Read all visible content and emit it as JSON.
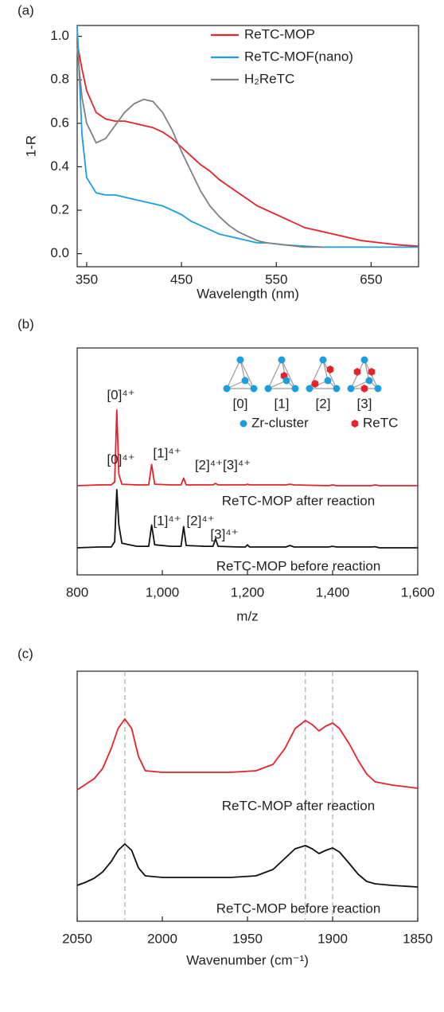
{
  "chart_data": [
    {
      "type": "line",
      "panel_label": "(a)",
      "xlabel": "Wavelength (nm)",
      "ylabel": "1-R",
      "xlim": [
        340,
        700
      ],
      "ylim": [
        -0.06,
        1.05
      ],
      "xticks": [
        350,
        450,
        550,
        650
      ],
      "yticks": [
        {
          "value": 0,
          "label": "0.0"
        },
        {
          "value": 0.2,
          "label": "0.2"
        },
        {
          "value": 0.4,
          "label": "0.4"
        },
        {
          "value": 0.6,
          "label": "0.6"
        },
        {
          "value": 0.8,
          "label": "0.8"
        },
        {
          "value": 1,
          "label": "1.0"
        }
      ],
      "legend": "upper right",
      "x": [
        340,
        345,
        350,
        360,
        370,
        380,
        390,
        400,
        410,
        420,
        430,
        440,
        450,
        460,
        470,
        480,
        490,
        500,
        510,
        520,
        530,
        540,
        560,
        580,
        600,
        620,
        640,
        660,
        680,
        700
      ],
      "series": [
        {
          "name": "ReTC-MOP",
          "color": "#e8212b",
          "values": [
            0.97,
            0.85,
            0.75,
            0.65,
            0.62,
            0.61,
            0.61,
            0.6,
            0.59,
            0.58,
            0.56,
            0.53,
            0.49,
            0.45,
            0.41,
            0.38,
            0.34,
            0.31,
            0.28,
            0.25,
            0.22,
            0.2,
            0.16,
            0.12,
            0.1,
            0.08,
            0.06,
            0.05,
            0.04,
            0.035
          ]
        },
        {
          "name": "ReTC-MOF(nano)",
          "color": "#1a9ee0",
          "values": [
            1.05,
            0.55,
            0.35,
            0.28,
            0.27,
            0.27,
            0.26,
            0.25,
            0.24,
            0.23,
            0.22,
            0.2,
            0.18,
            0.15,
            0.13,
            0.11,
            0.09,
            0.08,
            0.07,
            0.06,
            0.05,
            0.05,
            0.04,
            0.035,
            0.03,
            0.03,
            0.03,
            0.03,
            0.03,
            0.03
          ]
        },
        {
          "name": "H₂ReTC",
          "color": "#808080",
          "values": [
            0.95,
            0.72,
            0.6,
            0.51,
            0.53,
            0.59,
            0.65,
            0.69,
            0.71,
            0.7,
            0.65,
            0.57,
            0.47,
            0.38,
            0.29,
            0.22,
            0.17,
            0.13,
            0.1,
            0.08,
            0.06,
            0.05,
            0.04,
            0.03,
            0.03,
            null,
            null,
            null,
            null,
            null
          ]
        }
      ]
    },
    {
      "type": "line",
      "panel_label": "(b)",
      "xlabel": "m/z",
      "xlim": [
        800,
        1600
      ],
      "xticks": [
        800,
        {
          "value": 1000,
          "label": "1,000"
        },
        {
          "value": 1200,
          "label": "1,200"
        },
        {
          "value": 1400,
          "label": "1,400"
        },
        {
          "value": 1600,
          "label": "1,600"
        }
      ],
      "x": [
        800,
        850,
        880,
        888,
        893,
        898,
        905,
        940,
        968,
        975,
        982,
        1020,
        1044,
        1050,
        1056,
        1100,
        1119,
        1125,
        1131,
        1180,
        1195,
        1200,
        1205,
        1290,
        1300,
        1310,
        1390,
        1400,
        1410,
        1490,
        1500,
        1510,
        1600
      ],
      "series": [
        {
          "name": "ReTC-MOP after reaction",
          "color": "#e8212b",
          "values": [
            0,
            0.01,
            0.01,
            0.05,
            1.0,
            0.15,
            0.02,
            0.01,
            0.01,
            0.28,
            0.02,
            0.01,
            0.01,
            0.1,
            0.01,
            0.01,
            0.01,
            0.03,
            0.01,
            0.01,
            0.01,
            0.02,
            0.01,
            0.01,
            0.02,
            0.01,
            0,
            0.01,
            0,
            0,
            0.01,
            0,
            0
          ]
        },
        {
          "name": "ReTC-MOP before reaction",
          "color": "#111111",
          "values": [
            0,
            0.01,
            0.01,
            0.08,
            0.77,
            0.3,
            0.06,
            0.02,
            0.02,
            0.3,
            0.04,
            0.02,
            0.02,
            0.28,
            0.03,
            0.02,
            0.02,
            0.12,
            0.02,
            0.01,
            0.01,
            0.04,
            0.01,
            0.01,
            0.03,
            0.01,
            0.01,
            0.02,
            0.01,
            0.01,
            0.015,
            0,
            0
          ]
        }
      ],
      "annotations": [
        "[0]⁴⁺",
        "[1]⁴⁺",
        "[2]⁴⁺[3]⁴⁺",
        "[0]⁴⁺",
        "[1]⁴⁺",
        "[2]⁴⁺",
        "[3]⁴⁺"
      ],
      "inset": {
        "labels": [
          "[0]",
          "[1]",
          "[2]",
          "[3]"
        ],
        "legend": [
          "Zr-cluster",
          "ReTC"
        ]
      }
    },
    {
      "type": "line",
      "panel_label": "(c)",
      "xlabel": "Wavenumber (cm⁻¹)",
      "xlim": [
        2050,
        1850
      ],
      "xticks": [
        2050,
        2000,
        1950,
        1900,
        1850
      ],
      "reference_lines": [
        2022,
        1916,
        1900
      ],
      "x": [
        2050,
        2045,
        2040,
        2035,
        2030,
        2026,
        2022,
        2018,
        2014,
        2010,
        2000,
        1980,
        1960,
        1945,
        1935,
        1928,
        1922,
        1916,
        1912,
        1908,
        1904,
        1900,
        1896,
        1890,
        1885,
        1880,
        1875,
        1865,
        1850
      ],
      "series": [
        {
          "name": "ReTC-MOP after reaction",
          "color": "#e8212b",
          "values": [
            0.08,
            0.15,
            0.22,
            0.35,
            0.6,
            0.85,
            0.97,
            0.85,
            0.5,
            0.32,
            0.3,
            0.3,
            0.3,
            0.32,
            0.4,
            0.6,
            0.85,
            0.95,
            0.9,
            0.82,
            0.88,
            0.92,
            0.85,
            0.65,
            0.45,
            0.28,
            0.18,
            0.14,
            0.1
          ]
        },
        {
          "name": "ReTC-MOP before reaction",
          "color": "#111111",
          "values": [
            0.08,
            0.12,
            0.17,
            0.25,
            0.38,
            0.52,
            0.6,
            0.52,
            0.3,
            0.2,
            0.18,
            0.18,
            0.18,
            0.2,
            0.28,
            0.42,
            0.54,
            0.58,
            0.54,
            0.48,
            0.52,
            0.55,
            0.5,
            0.35,
            0.22,
            0.13,
            0.1,
            0.08,
            0.06
          ]
        }
      ]
    }
  ]
}
